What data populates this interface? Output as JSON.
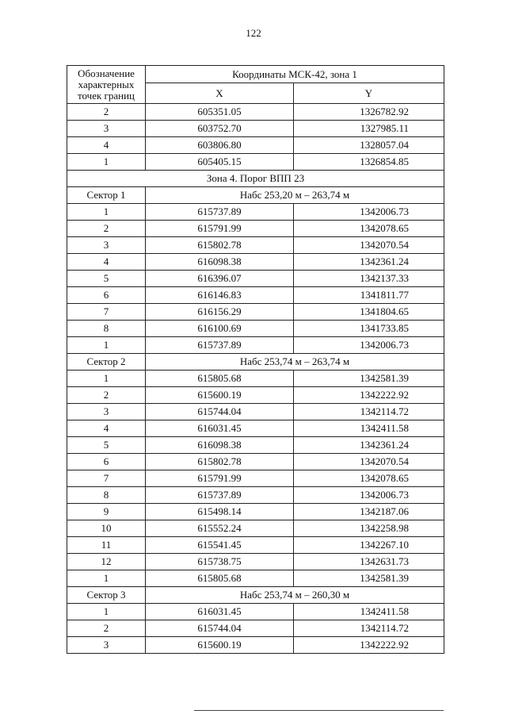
{
  "page_number": "122",
  "table": {
    "header": {
      "col1": "Обозначение характерных точек границ",
      "coords": "Координаты МСК-42, зона 1",
      "x": "X",
      "y": "Y"
    },
    "rows": [
      [
        "2",
        "605351.05",
        "1326782.92"
      ],
      [
        "3",
        "603752.70",
        "1327985.11"
      ],
      [
        "4",
        "603806.80",
        "1328057.04"
      ],
      [
        "1",
        "605405.15",
        "1326854.85"
      ]
    ],
    "zone": "Зона 4. Порог ВПП 23",
    "sectors": [
      {
        "name": "Сектор 1",
        "height": "Набс  253,20 м – 263,74 м",
        "rows": [
          [
            "1",
            "615737.89",
            "1342006.73"
          ],
          [
            "2",
            "615791.99",
            "1342078.65"
          ],
          [
            "3",
            "615802.78",
            "1342070.54"
          ],
          [
            "4",
            "616098.38",
            "1342361.24"
          ],
          [
            "5",
            "616396.07",
            "1342137.33"
          ],
          [
            "6",
            "616146.83",
            "1341811.77"
          ],
          [
            "7",
            "616156.29",
            "1341804.65"
          ],
          [
            "8",
            "616100.69",
            "1341733.85"
          ],
          [
            "1",
            "615737.89",
            "1342006.73"
          ]
        ]
      },
      {
        "name": "Сектор 2",
        "height": "Набс  253,74 м – 263,74 м",
        "rows": [
          [
            "1",
            "615805.68",
            "1342581.39"
          ],
          [
            "2",
            "615600.19",
            "1342222.92"
          ],
          [
            "3",
            "615744.04",
            "1342114.72"
          ],
          [
            "4",
            "616031.45",
            "1342411.58"
          ],
          [
            "5",
            "616098.38",
            "1342361.24"
          ],
          [
            "6",
            "615802.78",
            "1342070.54"
          ],
          [
            "7",
            "615791.99",
            "1342078.65"
          ],
          [
            "8",
            "615737.89",
            "1342006.73"
          ],
          [
            "9",
            "615498.14",
            "1342187.06"
          ],
          [
            "10",
            "615552.24",
            "1342258.98"
          ],
          [
            "11",
            "615541.45",
            "1342267.10"
          ],
          [
            "12",
            "615738.75",
            "1342631.73"
          ],
          [
            "1",
            "615805.68",
            "1342581.39"
          ]
        ]
      },
      {
        "name": "Сектор 3",
        "height": "Набс  253,74 м – 260,30 м",
        "rows": [
          [
            "1",
            "616031.45",
            "1342411.58"
          ],
          [
            "2",
            "615744.04",
            "1342114.72"
          ],
          [
            "3",
            "615600.19",
            "1342222.92"
          ]
        ]
      }
    ]
  }
}
